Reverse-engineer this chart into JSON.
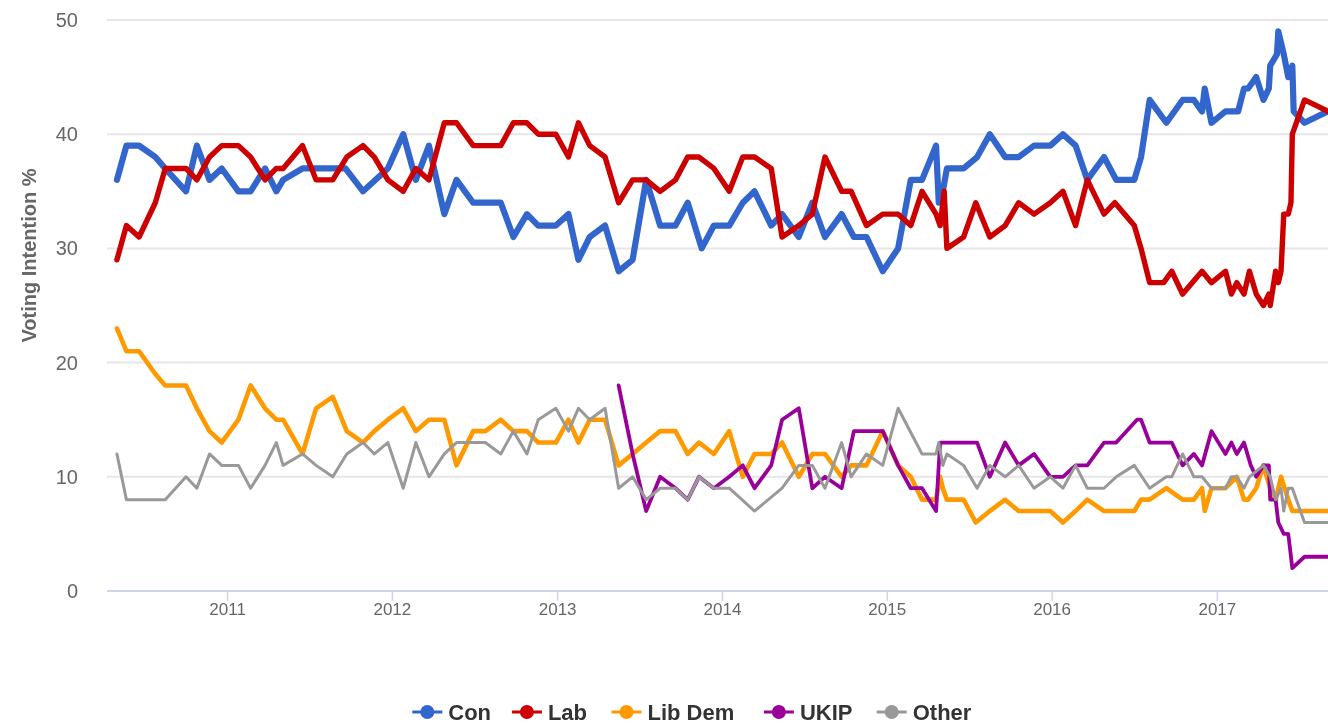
{
  "chart_data": {
    "type": "line",
    "ylabel": "Voting Intention %",
    "ylim": [
      0,
      50
    ],
    "yticks": [
      0,
      10,
      20,
      30,
      40,
      50
    ],
    "xlim": [
      "2010-04-09",
      "2017-09-03"
    ],
    "xticks": [
      {
        "value": "2011-01-01",
        "label": "2011"
      },
      {
        "value": "2012-01-01",
        "label": "2012"
      },
      {
        "value": "2013-01-01",
        "label": "2013"
      },
      {
        "value": "2014-01-01",
        "label": "2014"
      },
      {
        "value": "2015-01-01",
        "label": "2015"
      },
      {
        "value": "2016-01-01",
        "label": "2016"
      },
      {
        "value": "2017-01-01",
        "label": "2017"
      }
    ],
    "grid": "y",
    "legend": "bottom",
    "line_style": "solid",
    "series": [
      {
        "name": "Con",
        "color": "#3366cc",
        "x": [
          "2010-05-01",
          "2010-05-22",
          "2010-06-19",
          "2010-07-25",
          "2010-08-16",
          "2010-10-01",
          "2010-10-25",
          "2010-11-22",
          "2010-12-19",
          "2011-01-25",
          "2011-02-21",
          "2011-03-25",
          "2011-04-19",
          "2011-05-04",
          "2011-06-16",
          "2011-09-19",
          "2011-10-28",
          "2011-12-22",
          "2012-01-25",
          "2012-02-22",
          "2012-03-22",
          "2012-04-25",
          "2012-05-22",
          "2012-06-28",
          "2012-08-28",
          "2012-09-25",
          "2012-10-25",
          "2012-11-19",
          "2012-12-28",
          "2013-01-25",
          "2013-02-16",
          "2013-03-13",
          "2013-04-16",
          "2013-05-16",
          "2013-06-16",
          "2013-07-16",
          "2013-08-16",
          "2013-09-19",
          "2013-10-16",
          "2013-11-16",
          "2013-12-13",
          "2014-01-16",
          "2014-02-15",
          "2014-03-13",
          "2014-04-19",
          "2014-05-13",
          "2014-06-19",
          "2014-07-19",
          "2014-08-16",
          "2014-09-22",
          "2014-10-19",
          "2014-11-16",
          "2014-12-22",
          "2015-01-25",
          "2015-02-22",
          "2015-03-19",
          "2015-04-19",
          "2015-04-25",
          "2015-05-04",
          "2015-05-13",
          "2015-06-19",
          "2015-07-19",
          "2015-08-16",
          "2015-09-19",
          "2015-10-19",
          "2015-11-22",
          "2015-12-28",
          "2016-01-25",
          "2016-02-22",
          "2016-03-19",
          "2016-04-25",
          "2016-05-22",
          "2016-07-01",
          "2016-07-16",
          "2016-08-04",
          "2016-09-10",
          "2016-10-16",
          "2016-11-10",
          "2016-11-28",
          "2016-12-04",
          "2016-12-19",
          "2017-01-19",
          "2017-02-16",
          "2017-03-01",
          "2017-03-10",
          "2017-03-28",
          "2017-04-13",
          "2017-04-25",
          "2017-04-28",
          "2017-05-13",
          "2017-05-16",
          "2017-05-28",
          "2017-06-07",
          "2017-06-16",
          "2017-06-19",
          "2017-07-13",
          "2017-09-03"
        ],
        "values": [
          36,
          39,
          39,
          38,
          37,
          35,
          39,
          36,
          37,
          35,
          35,
          37,
          35,
          36,
          37,
          37,
          35,
          37,
          40,
          36,
          39,
          33,
          36,
          34,
          34,
          31,
          33,
          32,
          32,
          33,
          29,
          31,
          32,
          28,
          29,
          36,
          32,
          32,
          34,
          30,
          32,
          32,
          34,
          35,
          32,
          33,
          31,
          34,
          31,
          33,
          31,
          31,
          28,
          30,
          36,
          36,
          39,
          34,
          35,
          37,
          37,
          38,
          40,
          38,
          38,
          39,
          39,
          40,
          39,
          36,
          38,
          36,
          36,
          38,
          43,
          41,
          43,
          43,
          42,
          44,
          41,
          42,
          42,
          44,
          44,
          45,
          43,
          44,
          46,
          47,
          49,
          47,
          45,
          46,
          42,
          41,
          42
        ]
      },
      {
        "name": "Lab",
        "color": "#cc0000",
        "x": [
          "2010-05-01",
          "2010-05-22",
          "2010-06-19",
          "2010-07-25",
          "2010-08-16",
          "2010-10-01",
          "2010-10-25",
          "2010-11-22",
          "2010-12-19",
          "2011-01-25",
          "2011-02-21",
          "2011-03-25",
          "2011-04-19",
          "2011-05-04",
          "2011-06-16",
          "2011-07-16",
          "2011-08-22",
          "2011-09-22",
          "2011-10-28",
          "2011-11-22",
          "2011-12-22",
          "2012-01-25",
          "2012-02-22",
          "2012-03-22",
          "2012-04-25",
          "2012-05-22",
          "2012-06-28",
          "2012-08-28",
          "2012-09-25",
          "2012-10-25",
          "2012-11-19",
          "2012-12-28",
          "2013-01-25",
          "2013-02-16",
          "2013-03-13",
          "2013-04-16",
          "2013-05-16",
          "2013-06-16",
          "2013-07-16",
          "2013-08-16",
          "2013-09-19",
          "2013-10-16",
          "2013-11-10",
          "2013-12-13",
          "2014-01-16",
          "2014-02-15",
          "2014-03-13",
          "2014-04-19",
          "2014-05-13",
          "2014-06-19",
          "2014-07-19",
          "2014-08-16",
          "2014-09-22",
          "2014-10-13",
          "2014-11-16",
          "2014-12-22",
          "2015-01-25",
          "2015-02-22",
          "2015-03-19",
          "2015-04-19",
          "2015-04-28",
          "2015-05-07",
          "2015-05-13",
          "2015-06-19",
          "2015-07-16",
          "2015-08-16",
          "2015-09-19",
          "2015-10-19",
          "2015-11-22",
          "2015-12-28",
          "2016-01-25",
          "2016-02-22",
          "2016-03-19",
          "2016-04-25",
          "2016-05-19",
          "2016-07-01",
          "2016-07-16",
          "2016-08-04",
          "2016-09-04",
          "2016-09-22",
          "2016-10-16",
          "2016-11-28",
          "2016-12-19",
          "2017-01-19",
          "2017-02-01",
          "2017-02-13",
          "2017-03-01",
          "2017-03-13",
          "2017-03-28",
          "2017-04-13",
          "2017-04-25",
          "2017-04-28",
          "2017-05-10",
          "2017-05-16",
          "2017-05-22",
          "2017-05-28",
          "2017-06-07",
          "2017-06-13",
          "2017-06-16",
          "2017-07-13",
          "2017-09-03"
        ],
        "values": [
          29,
          32,
          31,
          34,
          37,
          37,
          36,
          38,
          39,
          39,
          38,
          36,
          37,
          37,
          39,
          36,
          36,
          38,
          39,
          38,
          36,
          35,
          37,
          36,
          41,
          41,
          39,
          39,
          41,
          41,
          40,
          40,
          38,
          41,
          39,
          38,
          34,
          36,
          36,
          35,
          36,
          38,
          38,
          37,
          35,
          38,
          38,
          37,
          31,
          32,
          33,
          38,
          35,
          35,
          32,
          33,
          33,
          32,
          35,
          33,
          32,
          35,
          30,
          31,
          34,
          31,
          32,
          34,
          33,
          34,
          35,
          32,
          36,
          33,
          34,
          32,
          30,
          27,
          27,
          28,
          26,
          28,
          27,
          28,
          26,
          27,
          26,
          28,
          26,
          25,
          26,
          25,
          28,
          27,
          28,
          33,
          33,
          34,
          40,
          43,
          42
        ]
      },
      {
        "name": "Lib Dem",
        "color": "#ff9900",
        "x": [
          "2010-05-01",
          "2010-05-22",
          "2010-06-19",
          "2010-07-25",
          "2010-08-16",
          "2010-10-01",
          "2010-10-25",
          "2010-11-22",
          "2010-12-19",
          "2011-01-25",
          "2011-02-21",
          "2011-03-25",
          "2011-04-19",
          "2011-05-04",
          "2011-06-16",
          "2011-07-16",
          "2011-08-22",
          "2011-09-22",
          "2011-10-28",
          "2011-11-22",
          "2011-12-22",
          "2012-01-25",
          "2012-02-22",
          "2012-03-22",
          "2012-04-25",
          "2012-05-22",
          "2012-06-28",
          "2012-07-25",
          "2012-08-28",
          "2012-09-25",
          "2012-10-25",
          "2012-11-19",
          "2012-12-28",
          "2013-01-25",
          "2013-02-16",
          "2013-03-13",
          "2013-04-16",
          "2013-05-16",
          "2013-06-16",
          "2013-07-16",
          "2013-08-16",
          "2013-09-19",
          "2013-10-16",
          "2013-11-10",
          "2013-12-13",
          "2014-01-16",
          "2014-02-15",
          "2014-03-13",
          "2014-04-19",
          "2014-05-13",
          "2014-06-19",
          "2014-07-19",
          "2014-08-16",
          "2014-09-22",
          "2014-10-13",
          "2014-11-16",
          "2014-12-22",
          "2015-01-25",
          "2015-02-22",
          "2015-03-19",
          "2015-04-19",
          "2015-04-28",
          "2015-05-04",
          "2015-05-13",
          "2015-06-19",
          "2015-07-16",
          "2015-08-16",
          "2015-09-19",
          "2015-10-19",
          "2015-11-22",
          "2015-12-28",
          "2016-01-25",
          "2016-02-22",
          "2016-03-19",
          "2016-04-25",
          "2016-05-22",
          "2016-07-01",
          "2016-07-16",
          "2016-08-04",
          "2016-09-10",
          "2016-10-16",
          "2016-11-10",
          "2016-11-28",
          "2016-12-04",
          "2016-12-19",
          "2017-01-19",
          "2017-02-13",
          "2017-03-01",
          "2017-03-10",
          "2017-03-28",
          "2017-04-13",
          "2017-04-28",
          "2017-05-10",
          "2017-05-22",
          "2017-06-07",
          "2017-06-16",
          "2017-09-03"
        ],
        "values": [
          23,
          21,
          21,
          19,
          18,
          18,
          16,
          14,
          13,
          15,
          18,
          16,
          15,
          15,
          12,
          16,
          17,
          14,
          13,
          14,
          15,
          16,
          14,
          15,
          15,
          11,
          14,
          14,
          15,
          14,
          14,
          13,
          13,
          15,
          13,
          15,
          15,
          11,
          12,
          13,
          14,
          14,
          12,
          13,
          12,
          14,
          10,
          12,
          12,
          13,
          10,
          12,
          12,
          10,
          11,
          11,
          14,
          11,
          10,
          8,
          8,
          10,
          9,
          8,
          8,
          6,
          7,
          8,
          7,
          7,
          7,
          6,
          7,
          8,
          7,
          7,
          7,
          8,
          8,
          9,
          8,
          8,
          9,
          7,
          9,
          9,
          10,
          8,
          8,
          9,
          11,
          9,
          8,
          10,
          8,
          7,
          7
        ]
      },
      {
        "name": "UKIP",
        "color": "#990099",
        "x": [
          "2013-05-16",
          "2013-06-16",
          "2013-07-16",
          "2013-08-16",
          "2013-09-19",
          "2013-10-16",
          "2013-11-10",
          "2013-12-13",
          "2014-01-16",
          "2014-02-15",
          "2014-03-13",
          "2014-04-19",
          "2014-05-13",
          "2014-06-19",
          "2014-07-19",
          "2014-08-16",
          "2014-09-22",
          "2014-10-19",
          "2014-12-22",
          "2015-01-25",
          "2015-02-22",
          "2015-03-19",
          "2015-04-19",
          "2015-04-28",
          "2015-05-13",
          "2015-07-19",
          "2015-08-16",
          "2015-09-19",
          "2015-10-19",
          "2015-11-22",
          "2015-12-28",
          "2016-01-25",
          "2016-02-22",
          "2016-03-19",
          "2016-04-25",
          "2016-05-22",
          "2016-07-07",
          "2016-07-16",
          "2016-08-04",
          "2016-09-22",
          "2016-10-16",
          "2016-11-10",
          "2016-11-28",
          "2016-12-19",
          "2017-01-19",
          "2017-02-01",
          "2017-02-13",
          "2017-03-01",
          "2017-03-16",
          "2017-03-28",
          "2017-04-13",
          "2017-04-25",
          "2017-04-28",
          "2017-05-10",
          "2017-05-16",
          "2017-05-28",
          "2017-06-07",
          "2017-06-16",
          "2017-07-13",
          "2017-09-03"
        ],
        "values": [
          18,
          12,
          7,
          10,
          9,
          8,
          10,
          9,
          10,
          11,
          9,
          11,
          15,
          16,
          9,
          10,
          9,
          14,
          14,
          11,
          9,
          9,
          7,
          13,
          13,
          13,
          10,
          13,
          11,
          12,
          10,
          10,
          11,
          11,
          13,
          13,
          15,
          15,
          13,
          13,
          11,
          12,
          11,
          14,
          12,
          13,
          12,
          13,
          11,
          10,
          11,
          11,
          8,
          8,
          6,
          5,
          5,
          2,
          3,
          3
        ]
      },
      {
        "name": "Other",
        "color": "#999999",
        "x": [
          "2010-05-01",
          "2010-05-22",
          "2010-08-16",
          "2010-10-01",
          "2010-10-25",
          "2010-11-22",
          "2010-12-19",
          "2011-01-25",
          "2011-02-21",
          "2011-03-25",
          "2011-04-19",
          "2011-05-04",
          "2011-06-16",
          "2011-07-16",
          "2011-08-22",
          "2011-09-22",
          "2011-10-28",
          "2011-11-22",
          "2011-12-22",
          "2012-01-25",
          "2012-02-22",
          "2012-03-22",
          "2012-04-25",
          "2012-05-22",
          "2012-07-25",
          "2012-08-28",
          "2012-09-25",
          "2012-10-25",
          "2012-11-19",
          "2012-12-28",
          "2013-01-25",
          "2013-02-16",
          "2013-03-13",
          "2013-04-16",
          "2013-05-16",
          "2013-06-16",
          "2013-07-16",
          "2013-08-16",
          "2013-09-19",
          "2013-10-16",
          "2013-11-10",
          "2013-12-13",
          "2014-01-16",
          "2014-03-13",
          "2014-05-13",
          "2014-06-19",
          "2014-07-19",
          "2014-08-16",
          "2014-09-22",
          "2014-10-13",
          "2014-11-16",
          "2014-12-22",
          "2015-01-25",
          "2015-03-19",
          "2015-04-19",
          "2015-04-25",
          "2015-05-04",
          "2015-05-13",
          "2015-06-19",
          "2015-07-19",
          "2015-08-16",
          "2015-09-19",
          "2015-10-19",
          "2015-11-22",
          "2015-12-28",
          "2016-01-25",
          "2016-02-22",
          "2016-03-19",
          "2016-04-25",
          "2016-05-22",
          "2016-07-01",
          "2016-08-04",
          "2016-09-10",
          "2016-09-22",
          "2016-10-16",
          "2016-11-10",
          "2016-11-28",
          "2016-12-19",
          "2017-01-19",
          "2017-02-01",
          "2017-02-13",
          "2017-03-01",
          "2017-03-13",
          "2017-04-13",
          "2017-04-28",
          "2017-05-10",
          "2017-05-22",
          "2017-05-28",
          "2017-06-07",
          "2017-06-16",
          "2017-07-13",
          "2017-09-03"
        ],
        "values": [
          12,
          8,
          8,
          10,
          9,
          12,
          11,
          11,
          9,
          11,
          13,
          11,
          12,
          11,
          10,
          12,
          13,
          12,
          13,
          9,
          13,
          10,
          12,
          13,
          13,
          12,
          14,
          12,
          15,
          16,
          14,
          16,
          15,
          16,
          9,
          10,
          8,
          9,
          9,
          8,
          10,
          9,
          9,
          7,
          9,
          11,
          11,
          9,
          13,
          10,
          12,
          11,
          16,
          12,
          12,
          13,
          11,
          12,
          11,
          9,
          11,
          10,
          11,
          9,
          10,
          9,
          11,
          9,
          9,
          10,
          11,
          9,
          10,
          10,
          12,
          10,
          10,
          9,
          9,
          10,
          10,
          9,
          10,
          11,
          10,
          8,
          9,
          7,
          9,
          9,
          6,
          6
        ]
      }
    ]
  }
}
